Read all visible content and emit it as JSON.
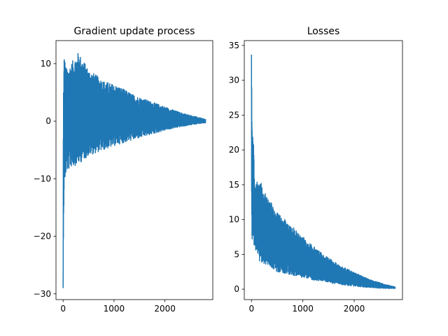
{
  "chart_data": [
    {
      "type": "line",
      "title": "Gradient update process",
      "xlabel": "",
      "ylabel": "",
      "xlim": [
        -140,
        2940
      ],
      "ylim": [
        -31,
        14
      ],
      "xticks": [
        0,
        1000,
        2000
      ],
      "xtick_labels": [
        "0",
        "1000",
        "2000"
      ],
      "yticks": [
        -30,
        -20,
        -10,
        0,
        10
      ],
      "ytick_labels": [
        "−30",
        "−20",
        "−10",
        "0",
        "10"
      ],
      "n_points": 2800,
      "grid": false,
      "color": "#1f77b4",
      "description": "Oscillating series symmetric about 0: starts near -29 at step 0, swings between roughly +12 and -11.5 in the first 300 steps, amplitude decays steadily to about 0 by step 2800",
      "envelope": {
        "x": [
          0,
          5,
          20,
          60,
          150,
          300,
          500,
          800,
          1100,
          1400,
          1700,
          2000,
          2300,
          2600,
          2800
        ],
        "upper": [
          -29,
          5.5,
          12,
          9,
          10,
          12,
          9,
          7,
          6,
          4.5,
          3.5,
          2.5,
          1.5,
          0.8,
          0.3
        ],
        "lower": [
          -29,
          -21,
          -11.5,
          -9,
          -8,
          -7.5,
          -6,
          -5,
          -4,
          -3.2,
          -2.4,
          -1.6,
          -1,
          -0.5,
          -0.3
        ]
      }
    },
    {
      "type": "line",
      "title": "Losses",
      "xlabel": "",
      "ylabel": "",
      "xlim": [
        -140,
        2940
      ],
      "ylim": [
        -1.5,
        35.7
      ],
      "xticks": [
        0,
        1000,
        2000
      ],
      "xtick_labels": [
        "0",
        "1000",
        "2000"
      ],
      "yticks": [
        0,
        5,
        10,
        15,
        20,
        25,
        30,
        35
      ],
      "ytick_labels": [
        "0",
        "5",
        "10",
        "15",
        "20",
        "25",
        "30",
        "35"
      ],
      "n_points": 2800,
      "grid": false,
      "color": "#1f77b4",
      "description": "Non-negative oscillating loss: spikes to about 34 at step 0, drops to ~6-24 in the first 50 steps, then oscillates between ~3 and ~15 and decays to about 0.2 by step 2800",
      "envelope": {
        "x": [
          0,
          10,
          30,
          60,
          150,
          300,
          500,
          800,
          1100,
          1400,
          1700,
          2000,
          2300,
          2600,
          2800
        ],
        "upper": [
          34,
          25,
          24,
          15,
          15.8,
          13.5,
          11,
          9,
          6.8,
          5,
          3.5,
          2.4,
          1.4,
          0.7,
          0.3
        ],
        "lower": [
          15,
          6,
          6.5,
          6,
          4,
          3.5,
          2.5,
          2,
          1.5,
          1,
          0.7,
          0.4,
          0.2,
          0.1,
          0.1
        ]
      }
    }
  ]
}
